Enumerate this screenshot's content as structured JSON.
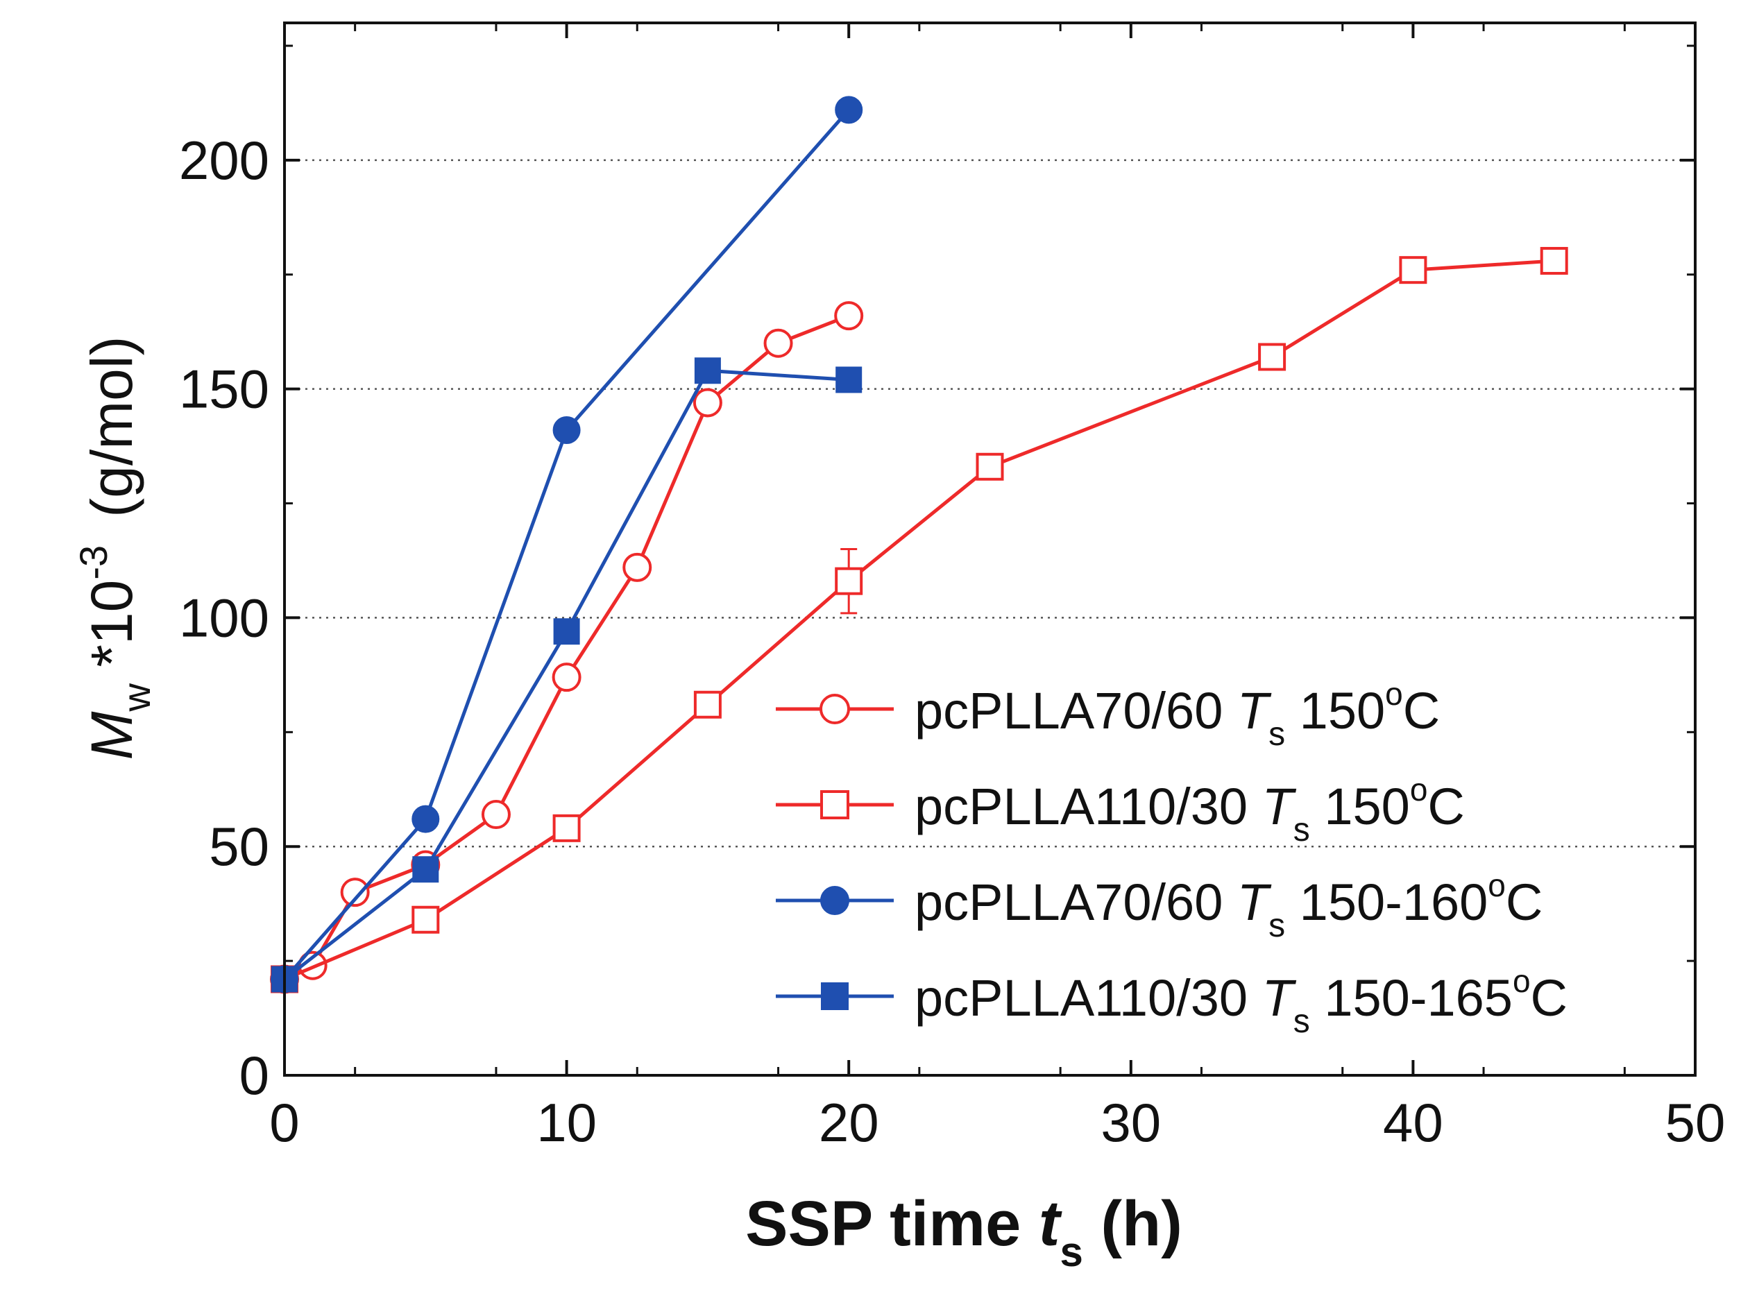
{
  "chart_data": {
    "type": "line",
    "title": "",
    "xlabel": {
      "main": "SSP time ",
      "italic": "t",
      "sub": "s",
      "tail": " (h)"
    },
    "ylabel": {
      "italic": "M",
      "sub": "w",
      "mult": " *10",
      "sup": "-3",
      "unit": "(g/mol)"
    },
    "xlim": [
      0,
      50
    ],
    "ylim": [
      0,
      230
    ],
    "xticks": [
      0,
      10,
      20,
      30,
      40,
      50
    ],
    "xtick_labels": [
      "0",
      "10",
      "20",
      "30",
      "40",
      "50"
    ],
    "yticks": [
      0,
      50,
      100,
      150,
      200
    ],
    "ytick_labels": [
      "0",
      "50",
      "100",
      "150",
      "200"
    ],
    "grid": "horizontal dotted at 50, 100, 150, 200",
    "legend_position": "center-right",
    "series": [
      {
        "name": "pcPLLA70/60",
        "ts_label": "T",
        "ts_sub": "s",
        "temp": "150",
        "deg": "o",
        "unit": "C",
        "color": "#ee2a2a",
        "marker": "circle-open",
        "x": [
          0,
          1,
          2.5,
          5,
          7.5,
          10,
          12.5,
          15,
          17.5,
          20
        ],
        "y": [
          21,
          24,
          40,
          46,
          57,
          87,
          111,
          147,
          160,
          166
        ]
      },
      {
        "name": "pcPLLA110/30",
        "ts_label": "T",
        "ts_sub": "s",
        "temp": "150",
        "deg": "o",
        "unit": "C",
        "color": "#ee2a2a",
        "marker": "square-open",
        "x": [
          0,
          5,
          10,
          15,
          20,
          25,
          35,
          40,
          45
        ],
        "y": [
          21,
          34,
          54,
          81,
          108,
          133,
          157,
          176,
          178
        ],
        "error_bars": [
          {
            "x": 20,
            "y": 108,
            "err": 7
          }
        ]
      },
      {
        "name": "pcPLLA70/60",
        "ts_label": "T",
        "ts_sub": "s",
        "temp": "150-160",
        "deg": "o",
        "unit": "C",
        "color": "#1f4fb0",
        "marker": "circle-filled",
        "x": [
          0,
          5,
          10,
          20
        ],
        "y": [
          21,
          56,
          141,
          211
        ]
      },
      {
        "name": "pcPLLA110/30",
        "ts_label": "T",
        "ts_sub": "s",
        "temp": "150-165",
        "deg": "o",
        "unit": "C",
        "color": "#1f4fb0",
        "marker": "square-filled",
        "x": [
          0,
          5,
          10,
          15,
          20
        ],
        "y": [
          21,
          45,
          97,
          154,
          152
        ]
      }
    ]
  }
}
